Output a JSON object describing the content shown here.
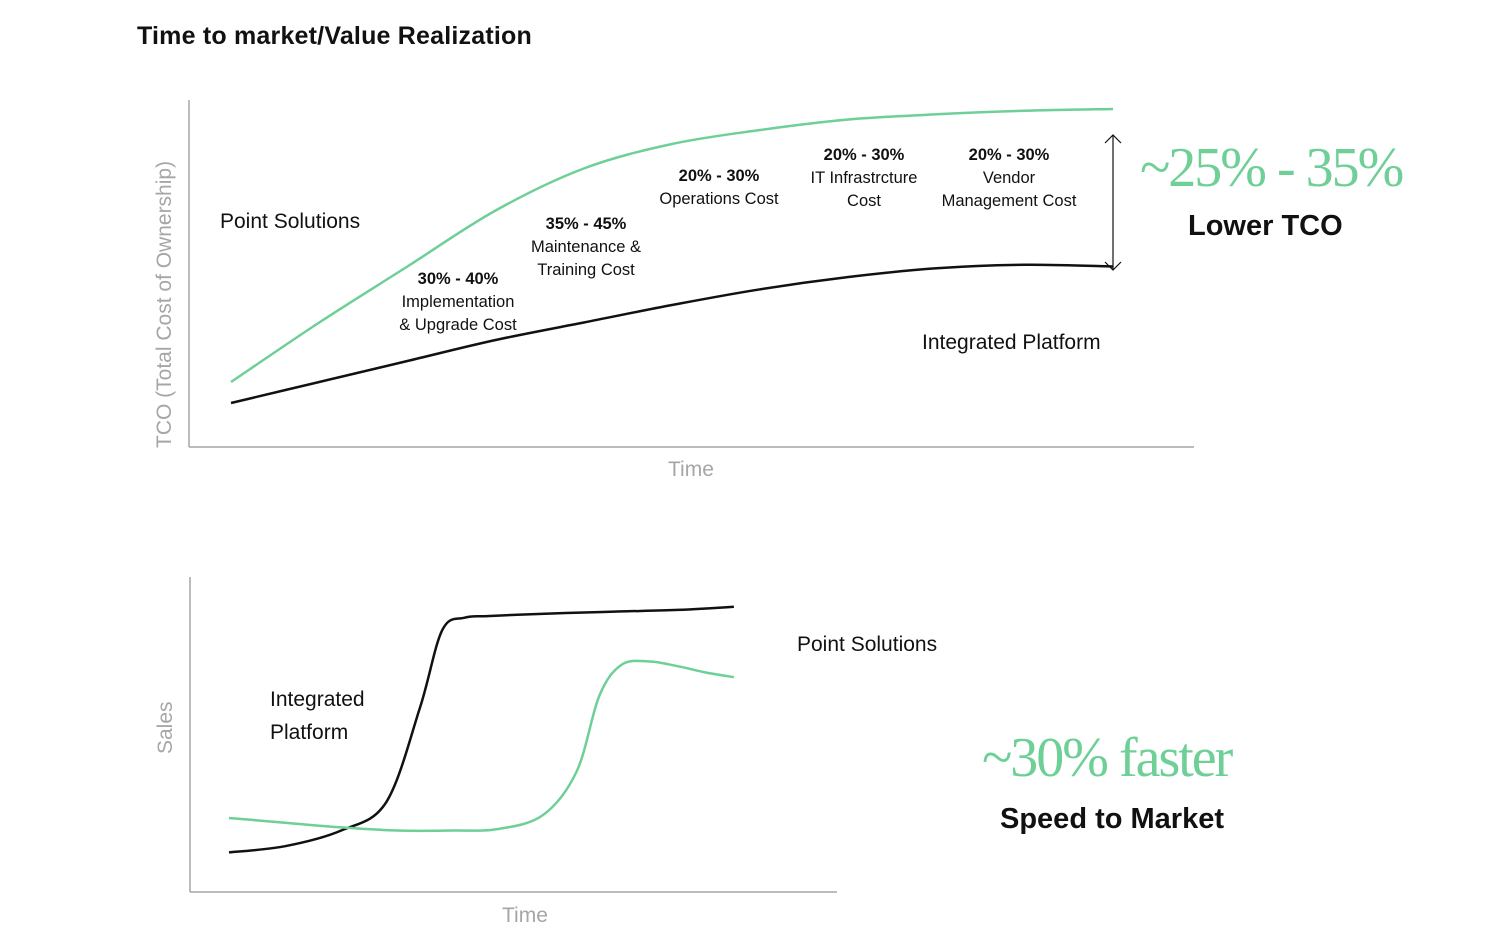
{
  "title": "Time to market/Value Realization",
  "colors": {
    "green": "#6ecf97",
    "black": "#111111",
    "axis": "#a6a6a6"
  },
  "chart_data": [
    {
      "type": "line",
      "title": "",
      "xlabel": "Time",
      "ylabel": "TCO (Total Cost of Ownership)",
      "xlim": [
        0,
        100
      ],
      "ylim": [
        0,
        100
      ],
      "grid": false,
      "series": [
        {
          "name": "Point Solutions",
          "color": "#6ecf97",
          "x": [
            0,
            10,
            20,
            30,
            40,
            50,
            60,
            70,
            80,
            90,
            100
          ],
          "values": [
            18,
            35,
            51,
            67,
            79,
            86,
            90,
            93,
            94.5,
            95.5,
            96
          ]
        },
        {
          "name": "Integrated Platform",
          "color": "#111111",
          "x": [
            0,
            10,
            20,
            30,
            40,
            50,
            60,
            70,
            80,
            90,
            100
          ],
          "values": [
            12,
            18,
            24,
            30,
            35,
            40,
            44.5,
            48,
            50.5,
            51.5,
            51
          ]
        }
      ],
      "series_labels": {
        "point_solutions": "Point Solutions",
        "integrated_platform": "Integrated Platform"
      },
      "annotations": [
        {
          "pct": "30% - 40%",
          "line1": "Implementation",
          "line2": "& Upgrade Cost"
        },
        {
          "pct": "35% - 45%",
          "line1": "Maintenance &",
          "line2": "Training Cost"
        },
        {
          "pct": "20% - 30%",
          "line1": "Operations Cost",
          "line2": ""
        },
        {
          "pct": "20% - 30%",
          "line1": "IT Infrastrcture",
          "line2": "Cost"
        },
        {
          "pct": "20% - 30%",
          "line1": "Vendor",
          "line2": "Management Cost"
        }
      ],
      "callout": {
        "value": "~25% - 35%",
        "label": "Lower TCO"
      }
    },
    {
      "type": "line",
      "title": "",
      "xlabel": "Time",
      "ylabel": "Sales",
      "xlim": [
        0,
        100
      ],
      "ylim": [
        0,
        100
      ],
      "grid": false,
      "series": [
        {
          "name": "Integrated Platform",
          "color": "#111111",
          "x": [
            0,
            10,
            20,
            28,
            34,
            38,
            42,
            46,
            52,
            60,
            70,
            80,
            90
          ],
          "values": [
            12,
            14,
            19,
            28,
            58,
            83,
            87,
            87.5,
            88,
            88.5,
            89,
            89.5,
            90.5
          ]
        },
        {
          "name": "Point Solutions",
          "color": "#6ecf97",
          "x": [
            0,
            10,
            20,
            30,
            40,
            48,
            56,
            62,
            66,
            70,
            75,
            80,
            85,
            90
          ],
          "values": [
            23,
            21.5,
            20,
            19,
            19,
            19.5,
            24,
            38,
            62,
            72,
            73,
            71.5,
            69.5,
            68
          ]
        }
      ],
      "series_labels": {
        "integrated_platform_1": "Integrated",
        "integrated_platform_2": "Platform",
        "point_solutions": "Point Solutions"
      },
      "callout": {
        "value": "~30% faster",
        "label": "Speed to Market"
      }
    }
  ]
}
